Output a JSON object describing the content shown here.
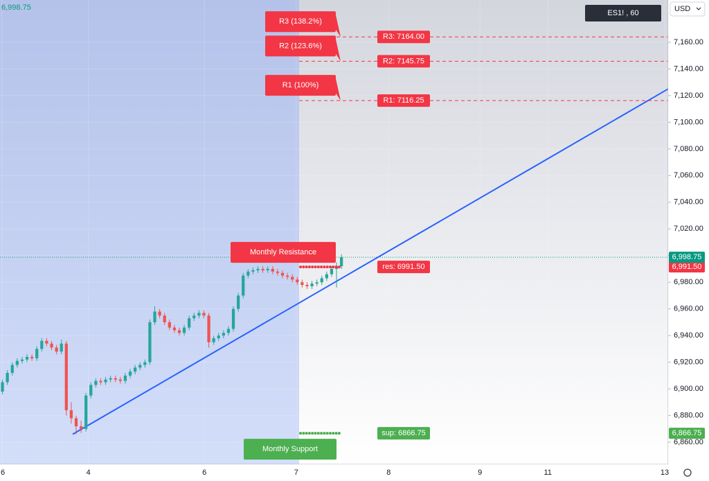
{
  "chart_data": {
    "type": "candlestick",
    "symbol": "ES1! , 60",
    "currency": "USD",
    "info_text": "6,998.75",
    "x": [
      0,
      1,
      2,
      3,
      4,
      5,
      6,
      7,
      8,
      9,
      10,
      11,
      12,
      13,
      14,
      15,
      16,
      17,
      18,
      19,
      20,
      21,
      22,
      23,
      24,
      25,
      26,
      27,
      28,
      29,
      30,
      31,
      32,
      33,
      34,
      35,
      36,
      37,
      38,
      39,
      40,
      41,
      42,
      43,
      44,
      45,
      46,
      47,
      48,
      49,
      50,
      51,
      52,
      53,
      54,
      55,
      56,
      57,
      58,
      59,
      60,
      61,
      62,
      63,
      64,
      65,
      66,
      67,
      68,
      69
    ],
    "open": [
      6898,
      6905,
      6912,
      6918,
      6921,
      6922,
      6924,
      6923,
      6930,
      6936,
      6934,
      6931,
      6928,
      6934,
      6884,
      6878,
      6872,
      6870,
      6895,
      6903,
      6906,
      6905,
      6907,
      6908,
      6907,
      6906,
      6910,
      6913,
      6916,
      6918,
      6920,
      6950,
      6958,
      6955,
      6950,
      6946,
      6944,
      6942,
      6946,
      6953,
      6955,
      6957,
      6955,
      6935,
      6938,
      6940,
      6942,
      6945,
      6960,
      6970,
      6985,
      6988,
      6989,
      6990,
      6989,
      6990,
      6988,
      6987,
      6985,
      6984,
      6982,
      6980,
      6978,
      6977,
      6979,
      6980,
      6983,
      6986,
      6990,
      6992
    ],
    "high": [
      6907,
      6914,
      6920,
      6923,
      6924,
      6926,
      6926,
      6932,
      6938,
      6938,
      6936,
      6933,
      6937,
      6936,
      6890,
      6880,
      6876,
      6897,
      6905,
      6908,
      6908,
      6909,
      6910,
      6910,
      6909,
      6912,
      6915,
      6918,
      6920,
      6922,
      6952,
      6962,
      6960,
      6957,
      6952,
      6948,
      6946,
      6948,
      6955,
      6957,
      6959,
      6959,
      6957,
      6940,
      6942,
      6944,
      6947,
      6962,
      6972,
      6987,
      6990,
      6991,
      6992,
      6992,
      6992,
      6992,
      6990,
      6989,
      6987,
      6986,
      6984,
      6982,
      6980,
      6981,
      6982,
      6985,
      6988,
      6992,
      6995,
      7001
    ],
    "low": [
      6896,
      6903,
      6910,
      6916,
      6919,
      6920,
      6921,
      6921,
      6928,
      6932,
      6929,
      6926,
      6926,
      6880,
      6874,
      6866,
      6867,
      6868,
      6893,
      6901,
      6903,
      6903,
      6905,
      6905,
      6904,
      6904,
      6908,
      6911,
      6914,
      6916,
      6918,
      6948,
      6953,
      6948,
      6944,
      6942,
      6940,
      6940,
      6944,
      6951,
      6953,
      6953,
      6931,
      6933,
      6936,
      6938,
      6940,
      6943,
      6958,
      6968,
      6983,
      6986,
      6987,
      6987,
      6987,
      6986,
      6985,
      6983,
      6982,
      6980,
      6978,
      6976,
      6975,
      6975,
      6977,
      6978,
      6981,
      6984,
      6976,
      6990
    ],
    "close": [
      6905,
      6912,
      6918,
      6921,
      6922,
      6924,
      6923,
      6930,
      6936,
      6934,
      6931,
      6928,
      6934,
      6884,
      6878,
      6872,
      6870,
      6895,
      6903,
      6906,
      6905,
      6907,
      6908,
      6907,
      6906,
      6910,
      6913,
      6916,
      6918,
      6920,
      6950,
      6958,
      6955,
      6950,
      6946,
      6944,
      6942,
      6946,
      6953,
      6955,
      6957,
      6955,
      6935,
      6938,
      6940,
      6942,
      6945,
      6960,
      6970,
      6985,
      6988,
      6989,
      6990,
      6989,
      6990,
      6988,
      6987,
      6985,
      6984,
      6982,
      6980,
      6978,
      6977,
      6979,
      6980,
      6983,
      6986,
      6990,
      6992,
      6998.75
    ],
    "up_color": "#26a69a",
    "down_color": "#ef5350",
    "trendline": {
      "x": [
        14.3,
        135.5
      ],
      "y": [
        6866,
        7125
      ],
      "color": "#2962ff"
    },
    "last_price": {
      "value": 6998.75,
      "label": "6,998.75",
      "color": "#089981"
    },
    "levels": [
      {
        "name": "R3 (138.2%)",
        "value": 7164,
        "value_label": "R3: 7164.00",
        "color": "#f23645",
        "kind": "resistance-fib"
      },
      {
        "name": "R2 (123.6%)",
        "value": 7145.75,
        "value_label": "R2: 7145.75",
        "color": "#f23645",
        "kind": "resistance-fib"
      },
      {
        "name": "R1 (100%)",
        "value": 7116.25,
        "value_label": "R1: 7116.25",
        "color": "#f23645",
        "kind": "resistance-fib"
      },
      {
        "name": "Monthly Resistance",
        "value": 6991.5,
        "value_label": "res: 6991.50",
        "axis_label": "6,991.50",
        "color": "#f23645",
        "kind": "resistance"
      },
      {
        "name": "Monthly Support",
        "value": 6866.75,
        "value_label": "sup: 6866.75",
        "axis_label": "6,866.75",
        "color": "#4caf50",
        "kind": "support"
      }
    ],
    "xlim": [
      -0.5,
      135.5
    ],
    "xticks": [
      {
        "value": -0.1,
        "label": "6"
      },
      {
        "value": 17.5,
        "label": "4"
      },
      {
        "value": 41.1,
        "label": "6"
      },
      {
        "value": 59.8,
        "label": "7"
      },
      {
        "value": 78.6,
        "label": "8"
      },
      {
        "value": 97.2,
        "label": "9"
      },
      {
        "value": 111,
        "label": "11"
      },
      {
        "value": 134.8,
        "label": "13"
      }
    ],
    "ylim": [
      6843.4,
      7191.7
    ],
    "yticks": [
      {
        "value": 6860,
        "label": "6,860.00"
      },
      {
        "value": 6880,
        "label": "6,880.00"
      },
      {
        "value": 6900,
        "label": "6,900.00"
      },
      {
        "value": 6920,
        "label": "6,920.00"
      },
      {
        "value": 6940,
        "label": "6,940.00"
      },
      {
        "value": 6960,
        "label": "6,960.00"
      },
      {
        "value": 6980,
        "label": "6,980.00"
      },
      {
        "value": 7000,
        "label": "7,000.00"
      },
      {
        "value": 7020,
        "label": "7,020.00"
      },
      {
        "value": 7040,
        "label": "7,040.00"
      },
      {
        "value": 7060,
        "label": "7,060.00"
      },
      {
        "value": 7080,
        "label": "7,080.00"
      },
      {
        "value": 7100,
        "label": "7,100.00"
      },
      {
        "value": 7120,
        "label": "7,120.00"
      },
      {
        "value": 7140,
        "label": "7,140.00"
      },
      {
        "value": 7160,
        "label": "7,160.00"
      }
    ],
    "grid": true
  }
}
